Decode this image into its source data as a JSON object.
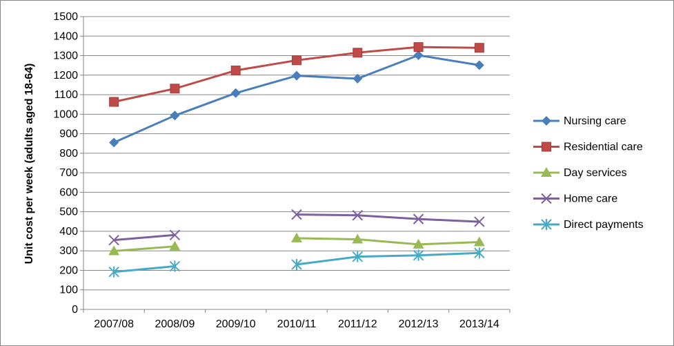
{
  "chart_data": {
    "type": "line",
    "title": "",
    "xlabel": "",
    "ylabel": "Unit cost per week (adults aged 18-64)",
    "ylim": [
      0,
      1500
    ],
    "ytick_step": 100,
    "grid": "horizontal",
    "legend_position": "right",
    "categories": [
      "2007/08",
      "2008/09",
      "2009/10",
      "2010/11",
      "2011/12",
      "2012/13",
      "2013/14"
    ],
    "series": [
      {
        "name": "Nursing care",
        "color": "#4A7EBB",
        "marker": "diamond",
        "values": [
          855,
          993,
          1108,
          1197,
          1182,
          1302,
          1251
        ]
      },
      {
        "name": "Residential care",
        "color": "#BE4B48",
        "marker": "square",
        "values": [
          1063,
          1131,
          1224,
          1276,
          1315,
          1344,
          1340
        ]
      },
      {
        "name": "Day services",
        "color": "#98B954",
        "marker": "triangle",
        "values": [
          299,
          323,
          null,
          365,
          359,
          333,
          345
        ]
      },
      {
        "name": "Home care",
        "color": "#7D60A0",
        "marker": "x",
        "values": [
          355,
          381,
          null,
          486,
          482,
          463,
          449
        ]
      },
      {
        "name": "Direct payments",
        "color": "#46AAC5",
        "marker": "star",
        "values": [
          192,
          221,
          null,
          230,
          270,
          277,
          289
        ]
      }
    ]
  }
}
